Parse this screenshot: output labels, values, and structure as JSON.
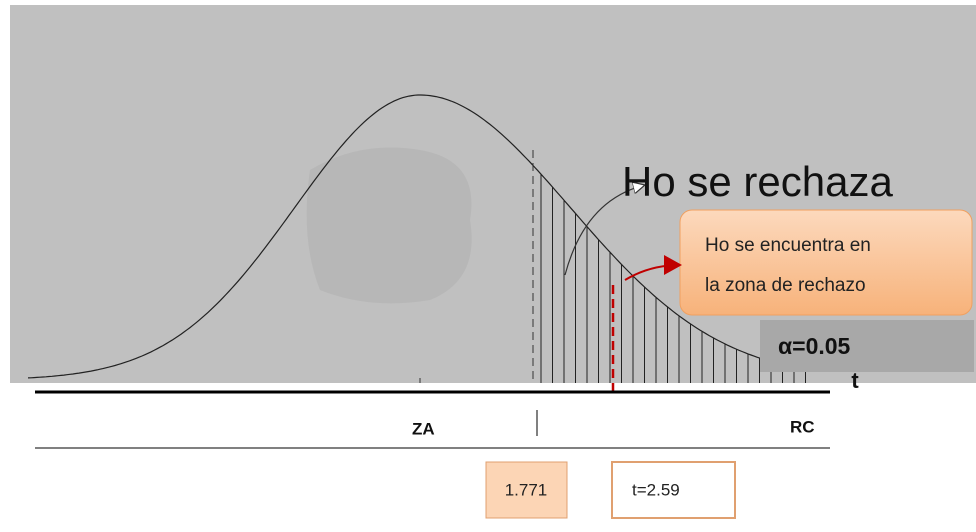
{
  "annotation": "Ho se rechaza",
  "callout": {
    "lines": [
      "Ho se encuentra en",
      "la zona de rechazo"
    ]
  },
  "alpha_label": "α=0.05",
  "axis_label": "t",
  "regions": {
    "left": "ZA",
    "right": "RC"
  },
  "boxes": {
    "critical": "1.771",
    "statistic": "t=2.59"
  }
}
